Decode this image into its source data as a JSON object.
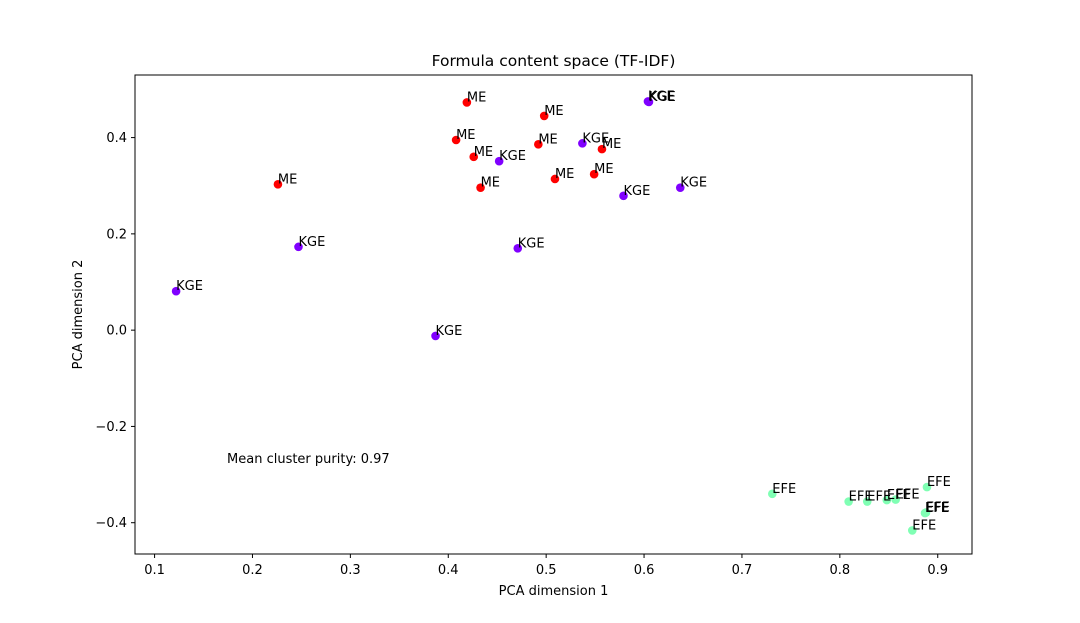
{
  "chart_data": {
    "type": "scatter",
    "title": "Formula content space (TF-IDF)",
    "xlabel": "PCA dimension 1",
    "ylabel": "PCA dimension 2",
    "xlim": [
      0.08,
      0.935
    ],
    "ylim": [
      -0.465,
      0.53
    ],
    "xticks": [
      0.1,
      0.2,
      0.3,
      0.4,
      0.5,
      0.6,
      0.7,
      0.8,
      0.9
    ],
    "xtick_labels": [
      "0.1",
      "0.2",
      "0.3",
      "0.4",
      "0.5",
      "0.6",
      "0.7",
      "0.8",
      "0.9"
    ],
    "yticks": [
      -0.4,
      -0.2,
      0.0,
      0.2,
      0.4
    ],
    "ytick_labels": [
      "−0.4",
      "−0.2",
      "0.0",
      "0.2",
      "0.4"
    ],
    "grid": false,
    "annotation": "Mean cluster purity: 0.97",
    "colors": {
      "ME": "#ff0000",
      "KGE": "#8000ff",
      "EFE": "#80ffb4"
    },
    "points": [
      {
        "x": 0.226,
        "y": 0.303,
        "label": "ME"
      },
      {
        "x": 0.419,
        "y": 0.473,
        "label": "ME"
      },
      {
        "x": 0.498,
        "y": 0.445,
        "label": "ME"
      },
      {
        "x": 0.408,
        "y": 0.395,
        "label": "ME"
      },
      {
        "x": 0.426,
        "y": 0.36,
        "label": "ME"
      },
      {
        "x": 0.492,
        "y": 0.386,
        "label": "ME"
      },
      {
        "x": 0.433,
        "y": 0.296,
        "label": "ME"
      },
      {
        "x": 0.557,
        "y": 0.376,
        "label": "ME"
      },
      {
        "x": 0.122,
        "y": 0.081,
        "label": "KGE"
      },
      {
        "x": 0.247,
        "y": 0.173,
        "label": "KGE"
      },
      {
        "x": 0.387,
        "y": -0.012,
        "label": "KGE"
      },
      {
        "x": 0.471,
        "y": 0.17,
        "label": "KGE"
      },
      {
        "x": 0.452,
        "y": 0.351,
        "label": "KGE"
      },
      {
        "x": 0.537,
        "y": 0.388,
        "label": "KGE"
      },
      {
        "x": 0.509,
        "y": 0.314,
        "label": "ME"
      },
      {
        "x": 0.549,
        "y": 0.324,
        "label": "ME"
      },
      {
        "x": 0.579,
        "y": 0.279,
        "label": "KGE"
      },
      {
        "x": 0.604,
        "y": 0.475,
        "label": "KGE"
      },
      {
        "x": 0.605,
        "y": 0.474,
        "label": "KGE"
      },
      {
        "x": 0.637,
        "y": 0.296,
        "label": "KGE"
      },
      {
        "x": 0.731,
        "y": -0.34,
        "label": "EFE"
      },
      {
        "x": 0.809,
        "y": -0.356,
        "label": "EFE"
      },
      {
        "x": 0.828,
        "y": -0.356,
        "label": "EFE"
      },
      {
        "x": 0.848,
        "y": -0.353,
        "label": "EFE"
      },
      {
        "x": 0.857,
        "y": -0.352,
        "label": "EFE"
      },
      {
        "x": 0.874,
        "y": -0.416,
        "label": "EFE"
      },
      {
        "x": 0.887,
        "y": -0.38,
        "label": "EFE"
      },
      {
        "x": 0.888,
        "y": -0.379,
        "label": "EFE"
      },
      {
        "x": 0.889,
        "y": -0.326,
        "label": "EFE"
      }
    ]
  }
}
